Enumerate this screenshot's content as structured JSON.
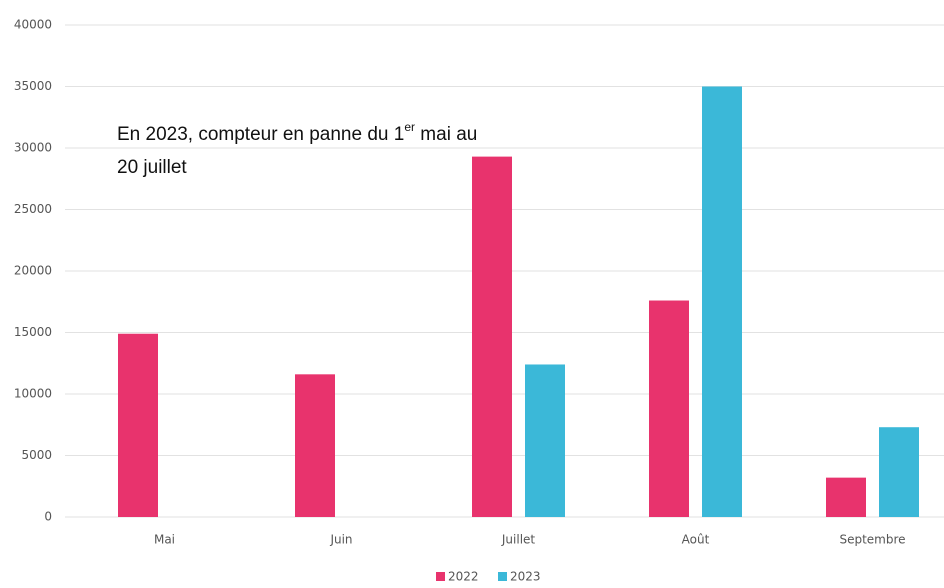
{
  "chart_data": {
    "type": "bar",
    "annotation": [
      "En  2023, compteur en panne du 1",
      "er",
      " mai au",
      "20 juillet"
    ],
    "categories": [
      "Mai",
      "Juin",
      "Juillet",
      "Août",
      "Septembre"
    ],
    "series": [
      {
        "name": "2022",
        "color": "#e8336d",
        "values": [
          14900,
          11600,
          29300,
          17600,
          3200
        ]
      },
      {
        "name": "2023",
        "color": "#3bb8d8",
        "values": [
          null,
          null,
          12400,
          35000,
          7300
        ]
      }
    ],
    "ylim": [
      0,
      40000
    ],
    "yticks": [
      0,
      5000,
      10000,
      15000,
      20000,
      25000,
      30000,
      35000,
      40000
    ],
    "grid": true,
    "legend": "bottom"
  }
}
